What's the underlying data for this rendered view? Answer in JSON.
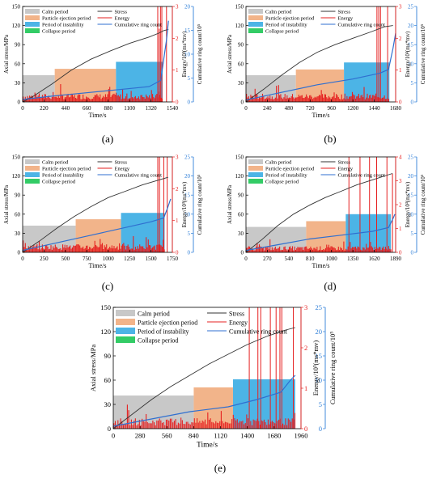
{
  "colors": {
    "calm": "#c8c8c8",
    "particle": "#f2b48a",
    "instability": "#4cb4e6",
    "collapse": "#33cc66",
    "stress": "#333333",
    "energy": "#e62020",
    "ring": "#2f6fd0",
    "energy_axis": "#e62020",
    "ring_axis": "#2f7fd8"
  },
  "legend_labels": {
    "calm": "Calm period",
    "particle": "Particle ejection period",
    "instability": "Period of instability",
    "collapse": "Collapse period",
    "stress": "Stress",
    "energy": "Energy",
    "ring": "Cumulative ring count"
  },
  "axis_text": {
    "xlabel": "Time/s",
    "ylabel_left": "Axial stress/MPa",
    "ylabel_energy": "Energy/10³(ms*mv)",
    "ylabel_ring": "Cumulative ring count/10⁵"
  },
  "chart_data": [
    {
      "id": "a",
      "caption": "(a)",
      "type": "line",
      "xlim": [
        0,
        1540
      ],
      "xticks": [
        0,
        220,
        440,
        660,
        880,
        1100,
        1320,
        1540
      ],
      "ylim_left": [
        0,
        150
      ],
      "yticks_left": [
        0,
        30,
        60,
        90,
        120,
        150
      ],
      "ylim_energy": [
        0,
        3
      ],
      "yticks_energy": [
        0,
        1,
        2,
        3
      ],
      "ylim_ring": [
        0,
        20
      ],
      "yticks_ring": [
        0,
        5,
        10,
        15,
        20
      ],
      "periods": [
        {
          "key": "calm",
          "start": 0,
          "end": 330,
          "stress_level": 42
        },
        {
          "key": "particle",
          "start": 330,
          "end": 960,
          "stress_level": 52
        },
        {
          "key": "instability",
          "start": 960,
          "end": 1440,
          "stress_level": 63
        }
      ],
      "stress": {
        "x": [
          0,
          100,
          300,
          500,
          700,
          900,
          1100,
          1300,
          1400,
          1450,
          1500
        ],
        "y": [
          0,
          8,
          28,
          50,
          67,
          80,
          92,
          102,
          108,
          112,
          114
        ]
      },
      "energy_spikes": [
        {
          "x": 1390,
          "y": 3
        },
        {
          "x": 1405,
          "y": 2.3
        },
        {
          "x": 1418,
          "y": 3
        },
        {
          "x": 1432,
          "y": 3
        },
        {
          "x": 1480,
          "y": 3
        }
      ],
      "ring": {
        "x": [
          0,
          300,
          700,
          1000,
          1300,
          1420,
          1480,
          1500
        ],
        "y": [
          0.5,
          1.2,
          2.0,
          2.6,
          3.2,
          4.5,
          13,
          17
        ]
      }
    },
    {
      "id": "b",
      "caption": "(b)",
      "type": "line",
      "xlim": [
        0,
        1680
      ],
      "xticks": [
        0,
        240,
        480,
        720,
        960,
        1200,
        1440,
        1680
      ],
      "ylim_left": [
        0,
        150
      ],
      "yticks_left": [
        0,
        30,
        60,
        90,
        120,
        150
      ],
      "ylim_energy": [
        0,
        3
      ],
      "yticks_energy": [
        0,
        1,
        2,
        3
      ],
      "ylim_ring": [
        0,
        25
      ],
      "yticks_ring": [
        0,
        5,
        10,
        15,
        20,
        25
      ],
      "periods": [
        {
          "key": "calm",
          "start": 0,
          "end": 560,
          "stress_level": 42
        },
        {
          "key": "particle",
          "start": 560,
          "end": 1100,
          "stress_level": 51
        },
        {
          "key": "instability",
          "start": 1100,
          "end": 1610,
          "stress_level": 62
        }
      ],
      "stress": {
        "x": [
          0,
          200,
          400,
          600,
          800,
          1000,
          1200,
          1400,
          1550,
          1650
        ],
        "y": [
          0,
          20,
          42,
          62,
          78,
          90,
          100,
          110,
          118,
          120
        ]
      },
      "energy_spikes": [
        {
          "x": 1470,
          "y": 3
        },
        {
          "x": 1490,
          "y": 3
        },
        {
          "x": 1510,
          "y": 3
        },
        {
          "x": 1590,
          "y": 3
        }
      ],
      "ring": {
        "x": [
          0,
          400,
          800,
          1200,
          1500,
          1600,
          1650,
          1680
        ],
        "y": [
          0.5,
          2.5,
          4.5,
          6.0,
          7.5,
          8.5,
          14,
          18
        ]
      }
    },
    {
      "id": "c",
      "caption": "(c)",
      "type": "line",
      "xlim": [
        0,
        1750
      ],
      "xticks": [
        0,
        250,
        500,
        750,
        1000,
        1250,
        1500,
        1750
      ],
      "ylim_left": [
        0,
        150
      ],
      "yticks_left": [
        0,
        30,
        60,
        90,
        120,
        150
      ],
      "ylim_energy": [
        0,
        3
      ],
      "yticks_energy": [
        0,
        1,
        2,
        3
      ],
      "ylim_ring": [
        0,
        25
      ],
      "yticks_ring": [
        0,
        5,
        10,
        15,
        20,
        25
      ],
      "periods": [
        {
          "key": "calm",
          "start": 0,
          "end": 620,
          "stress_level": 42
        },
        {
          "key": "particle",
          "start": 620,
          "end": 1150,
          "stress_level": 52
        },
        {
          "key": "instability",
          "start": 1150,
          "end": 1660,
          "stress_level": 62
        }
      ],
      "stress": {
        "x": [
          0,
          200,
          400,
          600,
          800,
          1000,
          1200,
          1400,
          1600,
          1700
        ],
        "y": [
          0,
          18,
          38,
          56,
          72,
          86,
          96,
          106,
          114,
          118
        ]
      },
      "energy_spikes": [
        {
          "x": 1580,
          "y": 3
        },
        {
          "x": 1600,
          "y": 3
        },
        {
          "x": 1650,
          "y": 3
        },
        {
          "x": 1690,
          "y": 3
        }
      ],
      "ring": {
        "x": [
          0,
          400,
          800,
          1200,
          1500,
          1650,
          1700,
          1730
        ],
        "y": [
          0.5,
          2.5,
          4.5,
          6.5,
          8.0,
          9.0,
          12,
          14
        ]
      }
    },
    {
      "id": "d",
      "caption": "(d)",
      "type": "line",
      "xlim": [
        0,
        1890
      ],
      "xticks": [
        0,
        270,
        540,
        810,
        1080,
        1350,
        1620,
        1890
      ],
      "ylim_left": [
        0,
        150
      ],
      "yticks_left": [
        0,
        30,
        60,
        90,
        120,
        150
      ],
      "ylim_energy": [
        0,
        4
      ],
      "yticks_energy": [
        0,
        1,
        2,
        3,
        4
      ],
      "ylim_ring": [
        0,
        25
      ],
      "yticks_ring": [
        0,
        5,
        10,
        15,
        20,
        25
      ],
      "periods": [
        {
          "key": "calm",
          "start": 0,
          "end": 760,
          "stress_level": 40
        },
        {
          "key": "particle",
          "start": 760,
          "end": 1260,
          "stress_level": 49
        },
        {
          "key": "instability",
          "start": 1260,
          "end": 1830,
          "stress_level": 60
        }
      ],
      "stress": {
        "x": [
          0,
          200,
          400,
          600,
          800,
          1000,
          1200,
          1400,
          1600,
          1800,
          1850
        ],
        "y": [
          0,
          20,
          42,
          60,
          74,
          86,
          96,
          106,
          114,
          122,
          124
        ]
      },
      "energy_spikes": [
        {
          "x": 1300,
          "y": 4
        },
        {
          "x": 1440,
          "y": 4
        },
        {
          "x": 1560,
          "y": 4
        },
        {
          "x": 1650,
          "y": 4
        },
        {
          "x": 1780,
          "y": 4
        },
        {
          "x": 1850,
          "y": 3.3
        }
      ],
      "ring": {
        "x": [
          0,
          400,
          800,
          1200,
          1600,
          1800,
          1860,
          1880
        ],
        "y": [
          0.5,
          2.0,
          3.5,
          4.5,
          5.5,
          6.5,
          9,
          10
        ]
      }
    },
    {
      "id": "e",
      "caption": "(e)",
      "type": "line",
      "xlim": [
        0,
        1960
      ],
      "xticks": [
        0,
        280,
        560,
        840,
        1120,
        1400,
        1680,
        1960
      ],
      "ylim_left": [
        0,
        150
      ],
      "yticks_left": [
        0,
        30,
        60,
        90,
        120,
        150
      ],
      "ylim_energy": [
        0,
        3
      ],
      "yticks_energy": [
        0,
        1,
        2,
        3
      ],
      "ylim_ring": [
        0,
        25
      ],
      "yticks_ring": [
        0,
        5,
        10,
        15,
        20,
        25
      ],
      "periods": [
        {
          "key": "calm",
          "start": 0,
          "end": 840,
          "stress_level": 41
        },
        {
          "key": "particle",
          "start": 840,
          "end": 1250,
          "stress_level": 51
        },
        {
          "key": "instability",
          "start": 1250,
          "end": 1900,
          "stress_level": 61
        }
      ],
      "stress": {
        "x": [
          0,
          200,
          400,
          600,
          800,
          1000,
          1200,
          1400,
          1600,
          1800,
          1900
        ],
        "y": [
          0,
          18,
          36,
          52,
          66,
          80,
          92,
          104,
          114,
          122,
          125
        ]
      },
      "energy_spikes": [
        {
          "x": 1420,
          "y": 3
        },
        {
          "x": 1510,
          "y": 3
        },
        {
          "x": 1540,
          "y": 3
        },
        {
          "x": 1640,
          "y": 3
        },
        {
          "x": 1700,
          "y": 3
        },
        {
          "x": 1740,
          "y": 3
        },
        {
          "x": 1760,
          "y": 3
        },
        {
          "x": 1880,
          "y": 3
        }
      ],
      "ring": {
        "x": [
          0,
          400,
          800,
          1200,
          1500,
          1750,
          1850,
          1900
        ],
        "y": [
          0.5,
          2.0,
          3.5,
          4.5,
          6.0,
          7.5,
          10,
          11
        ]
      }
    }
  ]
}
